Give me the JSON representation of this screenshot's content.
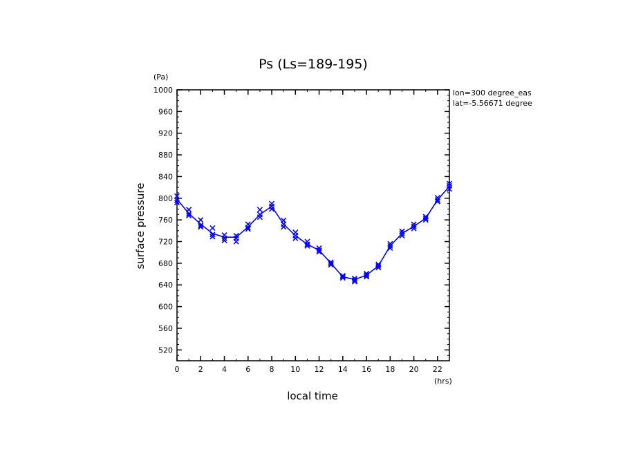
{
  "chart_data": {
    "type": "line",
    "title": "Ps (Ls=189-195)",
    "xlabel": "local time",
    "ylabel": "surface pressure",
    "x_unit": "(hrs)",
    "y_unit": "(Pa)",
    "xlim": [
      0,
      23
    ],
    "ylim": [
      500,
      1000
    ],
    "x_ticks": [
      0,
      2,
      4,
      6,
      8,
      10,
      12,
      14,
      16,
      18,
      20,
      22
    ],
    "y_ticks": [
      520,
      560,
      600,
      640,
      680,
      720,
      760,
      800,
      840,
      880,
      920,
      960,
      1000
    ],
    "annotations": [
      "lon=300 degree_eas",
      "lat=-5.56671 degree"
    ],
    "grid": false,
    "series": [
      {
        "color": "#0000ff",
        "marker": "x",
        "x": [
          0,
          1,
          2,
          3,
          4,
          5,
          6,
          7,
          8,
          9,
          10,
          11,
          12,
          13,
          14,
          15,
          16,
          17,
          18,
          19,
          20,
          21,
          22,
          23
        ],
        "y": [
          798,
          772,
          752,
          735,
          728,
          728,
          747,
          770,
          785,
          752,
          731,
          715,
          704,
          680,
          655,
          650,
          658,
          675,
          712,
          735,
          748,
          763,
          797,
          822
        ],
        "scatter": [
          [
            0,
            804
          ],
          [
            0,
            796
          ],
          [
            0,
            792
          ],
          [
            1,
            779
          ],
          [
            1,
            771
          ],
          [
            1,
            768
          ],
          [
            2,
            760
          ],
          [
            2,
            750
          ],
          [
            2,
            747
          ],
          [
            3,
            745
          ],
          [
            3,
            733
          ],
          [
            3,
            729
          ],
          [
            4,
            732
          ],
          [
            4,
            726
          ],
          [
            4,
            722
          ],
          [
            5,
            731
          ],
          [
            5,
            726
          ],
          [
            5,
            720
          ],
          [
            6,
            752
          ],
          [
            6,
            746
          ],
          [
            6,
            743
          ],
          [
            7,
            779
          ],
          [
            7,
            770
          ],
          [
            7,
            765
          ],
          [
            8,
            790
          ],
          [
            8,
            785
          ],
          [
            8,
            780
          ],
          [
            9,
            759
          ],
          [
            9,
            752
          ],
          [
            9,
            747
          ],
          [
            10,
            737
          ],
          [
            10,
            731
          ],
          [
            10,
            726
          ],
          [
            11,
            720
          ],
          [
            11,
            715
          ],
          [
            11,
            712
          ],
          [
            12,
            708
          ],
          [
            12,
            704
          ],
          [
            12,
            701
          ],
          [
            13,
            682
          ],
          [
            13,
            679
          ],
          [
            13,
            677
          ],
          [
            14,
            657
          ],
          [
            14,
            655
          ],
          [
            14,
            653
          ],
          [
            15,
            652
          ],
          [
            15,
            649
          ],
          [
            15,
            646
          ],
          [
            16,
            661
          ],
          [
            16,
            658
          ],
          [
            16,
            655
          ],
          [
            17,
            678
          ],
          [
            17,
            675
          ],
          [
            17,
            672
          ],
          [
            18,
            716
          ],
          [
            18,
            712
          ],
          [
            18,
            708
          ],
          [
            19,
            739
          ],
          [
            19,
            735
          ],
          [
            19,
            731
          ],
          [
            20,
            752
          ],
          [
            20,
            748
          ],
          [
            20,
            744
          ],
          [
            21,
            766
          ],
          [
            21,
            763
          ],
          [
            21,
            760
          ],
          [
            22,
            801
          ],
          [
            22,
            797
          ],
          [
            22,
            794
          ],
          [
            23,
            827
          ],
          [
            23,
            823
          ],
          [
            23,
            817
          ]
        ]
      }
    ]
  }
}
